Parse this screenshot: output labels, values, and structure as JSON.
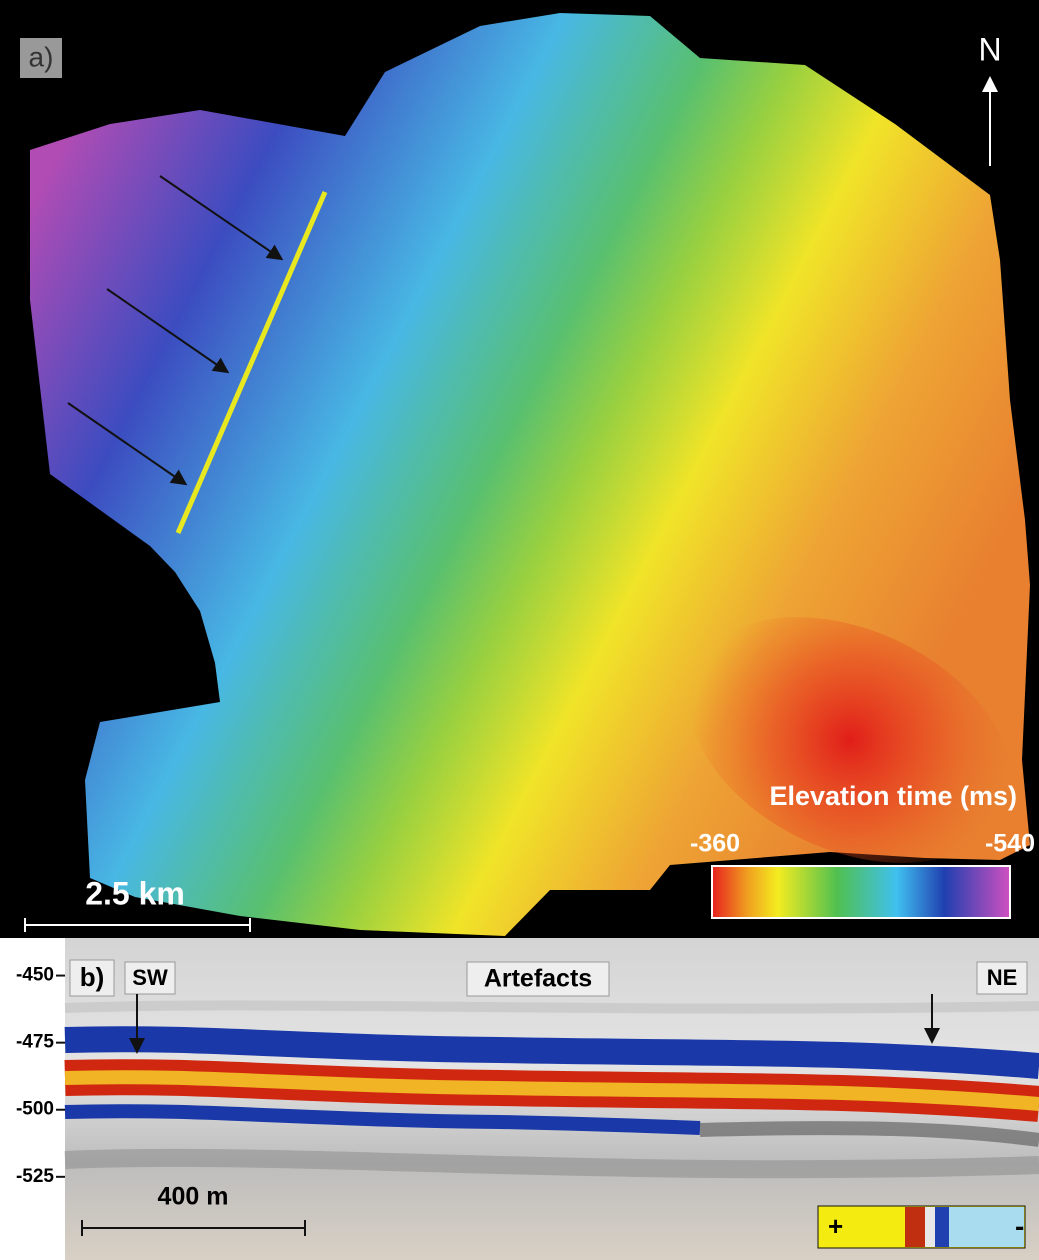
{
  "panel_a": {
    "label": "a)",
    "north": "N",
    "scale_bar": "2.5 km",
    "colorbar": {
      "title": "Elevation time (ms)",
      "min": -360,
      "max": -540
    }
  },
  "panel_b": {
    "label": "b)",
    "left_label": "SW",
    "center_label": "Artefacts",
    "right_label": "NE",
    "ylim": [
      -436,
      -556
    ],
    "yticks": [
      -450,
      -475,
      -500,
      -525
    ],
    "scale_bar": "400 m",
    "polarity": {
      "positive": "+",
      "negative": "-"
    }
  }
}
